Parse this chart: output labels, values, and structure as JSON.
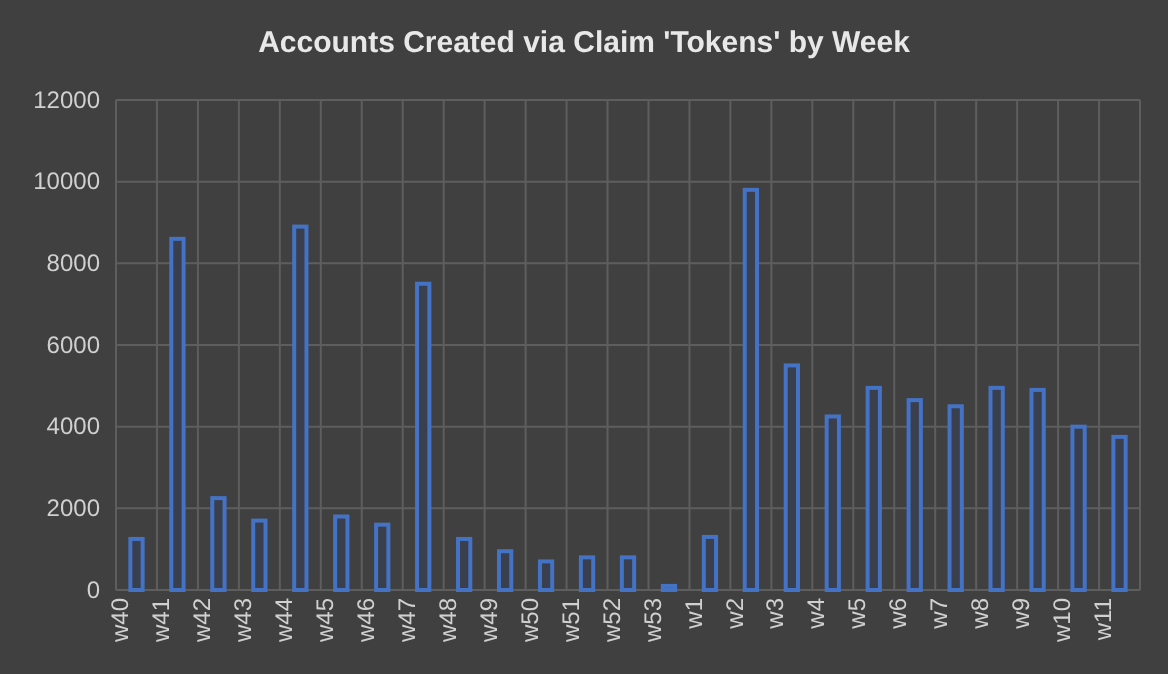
{
  "chart_data": {
    "type": "bar",
    "title": "Accounts Created via Claim 'Tokens' by Week",
    "categories": [
      "w40",
      "w41",
      "w42",
      "w43",
      "w44",
      "w45",
      "w46",
      "w47",
      "w48",
      "w49",
      "w50",
      "w51",
      "w52",
      "w53",
      "w1",
      "w2",
      "w3",
      "w4",
      "w5",
      "w6",
      "w7",
      "w8",
      "w9",
      "w10",
      "w11"
    ],
    "values": [
      1250,
      8600,
      2250,
      1700,
      8900,
      1800,
      1600,
      7500,
      1250,
      950,
      700,
      800,
      800,
      100,
      1300,
      9800,
      5500,
      4250,
      4950,
      4650,
      4500,
      4950,
      4900,
      4000,
      3750
    ],
    "color": "#4472c4",
    "ylim": [
      0,
      12000
    ],
    "yticks": [
      0,
      2000,
      4000,
      6000,
      8000,
      10000,
      12000
    ],
    "grid": true
  }
}
